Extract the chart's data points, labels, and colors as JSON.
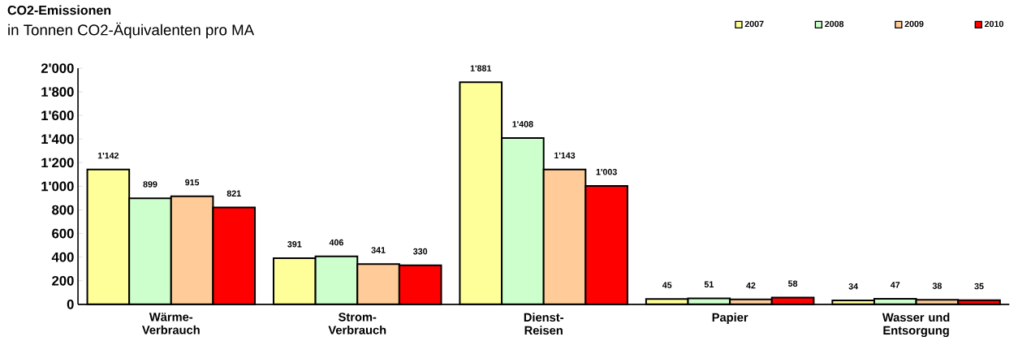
{
  "chart_data": {
    "type": "bar",
    "title": "CO2-Emissionen",
    "subtitle": "in Tonnen CO2-Äquivalenten pro MA",
    "categories": [
      "Wärme-Verbrauch",
      "Strom-Verbrauch",
      "Dienst-Reisen",
      "Papier",
      "Wasser und Entsorgung"
    ],
    "series": [
      {
        "name": "2007",
        "color": "#ffff99",
        "values": [
          1142,
          391,
          1881,
          45,
          34
        ],
        "value_labels": [
          "1'142",
          "391",
          "1'881",
          "45",
          "34"
        ]
      },
      {
        "name": "2008",
        "color": "#ccffcc",
        "values": [
          899,
          406,
          1408,
          51,
          47
        ],
        "value_labels": [
          "899",
          "406",
          "1'408",
          "51",
          "47"
        ]
      },
      {
        "name": "2009",
        "color": "#ffcc99",
        "values": [
          915,
          341,
          1143,
          42,
          38
        ],
        "value_labels": [
          "915",
          "341",
          "1'143",
          "42",
          "38"
        ]
      },
      {
        "name": "2010",
        "color": "#ff0000",
        "values": [
          821,
          330,
          1003,
          58,
          35
        ],
        "value_labels": [
          "821",
          "330",
          "1'003",
          "58",
          "35"
        ]
      }
    ],
    "ylim": [
      0,
      2000
    ],
    "yticks": [
      0,
      200,
      400,
      600,
      800,
      {
        "value": 1000,
        "label": "1'000"
      },
      {
        "value": 1200,
        "label": "1'200"
      },
      {
        "value": 1400,
        "label": "1'400"
      },
      {
        "value": 1600,
        "label": "1'600"
      },
      {
        "value": 1800,
        "label": "1'800"
      },
      {
        "value": 2000,
        "label": "2'000"
      }
    ],
    "grid": false,
    "legend": "top right",
    "marker": "square"
  }
}
